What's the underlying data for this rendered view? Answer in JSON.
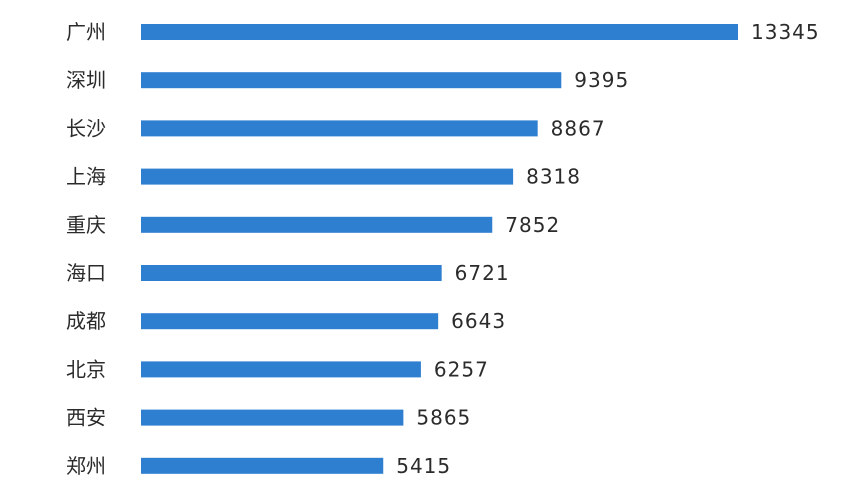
{
  "chart_data": {
    "type": "bar",
    "orientation": "horizontal",
    "categories": [
      "广州",
      "深圳",
      "长沙",
      "上海",
      "重庆",
      "海口",
      "成都",
      "北京",
      "西安",
      "郑州"
    ],
    "values": [
      13345,
      9395,
      8867,
      8318,
      7852,
      6721,
      6643,
      6257,
      5865,
      5415
    ],
    "value_labels": [
      "13345",
      "9395",
      "8867",
      "8318",
      "7852",
      "6721",
      "6643",
      "6257",
      "5865",
      "5415"
    ],
    "bar_color": "#2f7fd1",
    "grid": false,
    "legend": "none"
  }
}
